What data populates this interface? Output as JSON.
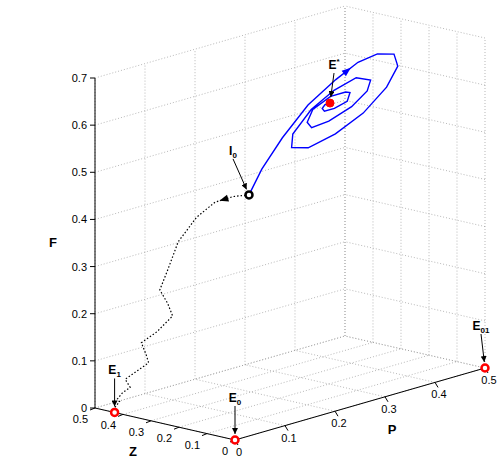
{
  "chart_data": {
    "type": "line3d",
    "xlabel": "P",
    "ylabel": "Z",
    "zlabel": "F",
    "xlim": [
      0,
      0.5
    ],
    "ylim": [
      0,
      0.5
    ],
    "zlim": [
      0,
      0.7
    ],
    "xticks": [
      0,
      0.1,
      0.2,
      0.3,
      0.4,
      0.5
    ],
    "yticks": [
      0,
      0.1,
      0.2,
      0.3,
      0.4,
      0.5
    ],
    "zticks": [
      0,
      0.1,
      0.2,
      0.3,
      0.4,
      0.5,
      0.6,
      0.7
    ],
    "grid": true,
    "series": [
      {
        "color": "#000000",
        "line_style": "dotted",
        "x": [
          0.14,
          0.12,
          0.1,
          0.08,
          0.06,
          0.05,
          0.04,
          0.05,
          0.06,
          0.04,
          0.02,
          0.03,
          0.04,
          0.02,
          0.01,
          0.02,
          0.01,
          0.0,
          0.01,
          0.0,
          0.0
        ],
        "y": [
          0.2,
          0.22,
          0.25,
          0.28,
          0.31,
          0.33,
          0.34,
          0.33,
          0.33,
          0.35,
          0.37,
          0.37,
          0.38,
          0.4,
          0.41,
          0.41,
          0.42,
          0.42,
          0.43,
          0.43,
          0.43
        ],
        "z": [
          0.45,
          0.45,
          0.44,
          0.41,
          0.36,
          0.3,
          0.26,
          0.23,
          0.2,
          0.17,
          0.15,
          0.12,
          0.1,
          0.08,
          0.07,
          0.05,
          0.04,
          0.03,
          0.02,
          0.01,
          0.0
        ]
      },
      {
        "color": "#0000ff",
        "line_style": "solid",
        "x": [
          0.14,
          0.16,
          0.19,
          0.23,
          0.28,
          0.33,
          0.38,
          0.43,
          0.46,
          0.46,
          0.43,
          0.38,
          0.32,
          0.27,
          0.25,
          0.27,
          0.31,
          0.36,
          0.4,
          0.41,
          0.39,
          0.35,
          0.31,
          0.29,
          0.29,
          0.32,
          0.35,
          0.37,
          0.37,
          0.35,
          0.33,
          0.32,
          0.32,
          0.33
        ],
        "y": [
          0.2,
          0.19,
          0.17,
          0.15,
          0.14,
          0.15,
          0.17,
          0.2,
          0.24,
          0.28,
          0.31,
          0.32,
          0.31,
          0.28,
          0.24,
          0.21,
          0.2,
          0.21,
          0.23,
          0.26,
          0.28,
          0.29,
          0.28,
          0.26,
          0.24,
          0.23,
          0.23,
          0.25,
          0.26,
          0.27,
          0.27,
          0.26,
          0.25,
          0.25
        ],
        "z": [
          0.45,
          0.5,
          0.56,
          0.62,
          0.66,
          0.68,
          0.68,
          0.66,
          0.62,
          0.57,
          0.52,
          0.49,
          0.48,
          0.5,
          0.54,
          0.59,
          0.62,
          0.63,
          0.61,
          0.58,
          0.55,
          0.53,
          0.53,
          0.55,
          0.58,
          0.6,
          0.6,
          0.59,
          0.57,
          0.56,
          0.56,
          0.57,
          0.58,
          0.58
        ]
      }
    ],
    "points": [
      {
        "label": "E0",
        "x": 0,
        "y": 0,
        "z": 0,
        "color": "#ff0000",
        "marker": "open_circle"
      },
      {
        "label": "E01",
        "x": 0.5,
        "y": 0,
        "z": 0,
        "color": "#ff0000",
        "marker": "open_circle"
      },
      {
        "label": "E1",
        "x": 0,
        "y": 0.43,
        "z": 0,
        "color": "#ff0000",
        "marker": "open_circle"
      },
      {
        "label": "E*",
        "x": 0.33,
        "y": 0.25,
        "z": 0.58,
        "color": "#ff0000",
        "marker": "circle"
      },
      {
        "label": "I0",
        "x": 0.14,
        "y": 0.2,
        "z": 0.45,
        "color": "#000000",
        "marker": "open_circle"
      }
    ]
  }
}
